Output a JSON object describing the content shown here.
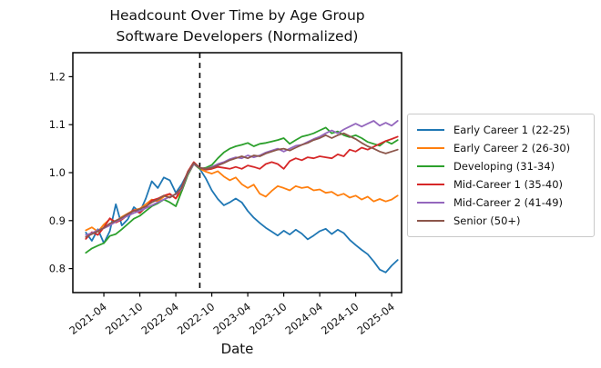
{
  "title": {
    "line1": "Headcount Over Time by Age Group",
    "line2": "Software Developers (Normalized)"
  },
  "chart_data": {
    "type": "line",
    "title": "Headcount Over Time by Age Group\nSoftware Developers (Normalized)",
    "xlabel": "Date",
    "ylabel": "",
    "grid": false,
    "legend_position": "right",
    "ylim": [
      0.75,
      1.25
    ],
    "yticks": [
      "0.8",
      "0.9",
      "1.0",
      "1.1",
      "1.2"
    ],
    "xticks": [
      "2021-04",
      "2021-10",
      "2022-04",
      "2022-10",
      "2023-04",
      "2023-10",
      "2024-04",
      "2024-10",
      "2025-04"
    ],
    "vline": {
      "date": "2022-08",
      "style": "dashed",
      "color": "#000000"
    },
    "x": [
      "2021-01",
      "2021-02",
      "2021-03",
      "2021-04",
      "2021-05",
      "2021-06",
      "2021-07",
      "2021-08",
      "2021-09",
      "2021-10",
      "2021-11",
      "2021-12",
      "2022-01",
      "2022-02",
      "2022-03",
      "2022-04",
      "2022-05",
      "2022-06",
      "2022-07",
      "2022-08",
      "2022-09",
      "2022-10",
      "2022-11",
      "2022-12",
      "2023-01",
      "2023-02",
      "2023-03",
      "2023-04",
      "2023-05",
      "2023-06",
      "2023-07",
      "2023-08",
      "2023-09",
      "2023-10",
      "2023-11",
      "2023-12",
      "2024-01",
      "2024-02",
      "2024-03",
      "2024-04",
      "2024-05",
      "2024-06",
      "2024-07",
      "2024-08",
      "2024-09",
      "2024-10",
      "2024-11",
      "2024-12",
      "2025-01",
      "2025-02",
      "2025-03",
      "2025-04",
      "2025-05"
    ],
    "series": [
      {
        "name": "Early Career 1 (22-25)",
        "color": "#1f77b4",
        "values": [
          0.875,
          0.858,
          0.882,
          0.853,
          0.878,
          0.934,
          0.89,
          0.903,
          0.928,
          0.918,
          0.946,
          0.982,
          0.968,
          0.99,
          0.984,
          0.958,
          0.976,
          1.0,
          1.02,
          1.008,
          0.988,
          0.963,
          0.945,
          0.932,
          0.938,
          0.946,
          0.938,
          0.92,
          0.906,
          0.895,
          0.885,
          0.877,
          0.869,
          0.879,
          0.871,
          0.881,
          0.873,
          0.861,
          0.869,
          0.878,
          0.883,
          0.872,
          0.881,
          0.874,
          0.86,
          0.849,
          0.839,
          0.83,
          0.815,
          0.798,
          0.792,
          0.806,
          0.818
        ]
      },
      {
        "name": "Early Career 2 (26-30)",
        "color": "#ff7f0e",
        "values": [
          0.88,
          0.886,
          0.877,
          0.892,
          0.903,
          0.898,
          0.908,
          0.915,
          0.922,
          0.925,
          0.934,
          0.944,
          0.94,
          0.95,
          0.955,
          0.946,
          0.962,
          0.995,
          1.018,
          1.008,
          1.002,
          0.998,
          1.003,
          0.992,
          0.984,
          0.99,
          0.976,
          0.968,
          0.975,
          0.956,
          0.95,
          0.962,
          0.972,
          0.968,
          0.963,
          0.972,
          0.968,
          0.97,
          0.963,
          0.965,
          0.958,
          0.96,
          0.952,
          0.956,
          0.948,
          0.952,
          0.944,
          0.95,
          0.94,
          0.945,
          0.94,
          0.944,
          0.952
        ]
      },
      {
        "name": "Developing (31-34)",
        "color": "#2ca02c",
        "values": [
          0.833,
          0.842,
          0.848,
          0.853,
          0.868,
          0.872,
          0.882,
          0.893,
          0.904,
          0.91,
          0.92,
          0.93,
          0.936,
          0.944,
          0.938,
          0.93,
          0.962,
          0.995,
          1.018,
          1.008,
          1.01,
          1.016,
          1.03,
          1.042,
          1.05,
          1.055,
          1.058,
          1.062,
          1.055,
          1.06,
          1.062,
          1.065,
          1.068,
          1.072,
          1.06,
          1.068,
          1.075,
          1.078,
          1.082,
          1.088,
          1.094,
          1.082,
          1.086,
          1.078,
          1.074,
          1.078,
          1.072,
          1.064,
          1.06,
          1.056,
          1.066,
          1.06,
          1.068
        ]
      },
      {
        "name": "Mid-Career 1 (35-40)",
        "color": "#d62728",
        "values": [
          0.862,
          0.876,
          0.87,
          0.886,
          0.905,
          0.896,
          0.902,
          0.912,
          0.922,
          0.916,
          0.928,
          0.942,
          0.946,
          0.952,
          0.956,
          0.946,
          0.97,
          1.002,
          1.022,
          1.01,
          1.006,
          1.008,
          1.012,
          1.01,
          1.008,
          1.012,
          1.008,
          1.015,
          1.012,
          1.008,
          1.018,
          1.022,
          1.018,
          1.008,
          1.024,
          1.03,
          1.026,
          1.032,
          1.03,
          1.034,
          1.032,
          1.03,
          1.038,
          1.034,
          1.048,
          1.044,
          1.052,
          1.048,
          1.054,
          1.06,
          1.066,
          1.07,
          1.075
        ]
      },
      {
        "name": "Mid-Career 2 (41-49)",
        "color": "#9467bd",
        "values": [
          0.87,
          0.874,
          0.88,
          0.884,
          0.89,
          0.898,
          0.904,
          0.91,
          0.916,
          0.92,
          0.926,
          0.932,
          0.938,
          0.944,
          0.95,
          0.955,
          0.966,
          0.998,
          1.018,
          1.01,
          1.008,
          1.012,
          1.018,
          1.022,
          1.028,
          1.032,
          1.03,
          1.036,
          1.032,
          1.036,
          1.042,
          1.046,
          1.05,
          1.044,
          1.05,
          1.056,
          1.058,
          1.064,
          1.07,
          1.075,
          1.082,
          1.088,
          1.082,
          1.09,
          1.096,
          1.102,
          1.096,
          1.102,
          1.108,
          1.098,
          1.104,
          1.098,
          1.108
        ]
      },
      {
        "name": "Senior (50+)",
        "color": "#8c564b",
        "values": [
          0.866,
          0.872,
          0.878,
          0.885,
          0.894,
          0.9,
          0.906,
          0.914,
          0.92,
          0.924,
          0.93,
          0.938,
          0.944,
          0.952,
          0.948,
          0.956,
          0.968,
          1.0,
          1.02,
          1.01,
          1.008,
          1.01,
          1.015,
          1.02,
          1.026,
          1.03,
          1.034,
          1.03,
          1.036,
          1.034,
          1.04,
          1.044,
          1.048,
          1.05,
          1.046,
          1.052,
          1.058,
          1.062,
          1.068,
          1.072,
          1.078,
          1.072,
          1.078,
          1.082,
          1.076,
          1.07,
          1.062,
          1.055,
          1.05,
          1.044,
          1.04,
          1.044,
          1.048
        ]
      }
    ]
  }
}
